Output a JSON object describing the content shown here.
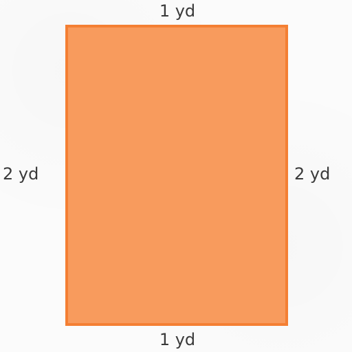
{
  "labels": {
    "top": "1 yd",
    "bottom": "1 yd",
    "left": "2 yd",
    "right": "2 yd"
  },
  "colors": {
    "rectangle_fill": "#f89b5d",
    "rectangle_border": "#f47f33",
    "text": "#3a3a3a",
    "background": "#fbfbfb"
  }
}
